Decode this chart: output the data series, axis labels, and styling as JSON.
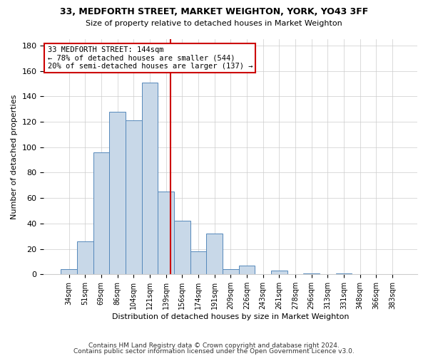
{
  "title1": "33, MEDFORTH STREET, MARKET WEIGHTON, YORK, YO43 3FF",
  "title2": "Size of property relative to detached houses in Market Weighton",
  "xlabel": "Distribution of detached houses by size in Market Weighton",
  "ylabel": "Number of detached properties",
  "bar_color": "#c8d8e8",
  "bar_edge_color": "#5588bb",
  "categories": [
    "34sqm",
    "51sqm",
    "69sqm",
    "86sqm",
    "104sqm",
    "121sqm",
    "139sqm",
    "156sqm",
    "174sqm",
    "191sqm",
    "209sqm",
    "226sqm",
    "243sqm",
    "261sqm",
    "278sqm",
    "296sqm",
    "313sqm",
    "331sqm",
    "348sqm",
    "366sqm",
    "383sqm"
  ],
  "values": [
    4,
    26,
    96,
    128,
    121,
    151,
    65,
    42,
    18,
    32,
    4,
    7,
    0,
    3,
    0,
    1,
    0,
    1,
    0,
    0,
    0
  ],
  "vline_color": "#cc0000",
  "ylim": [
    0,
    185
  ],
  "yticks": [
    0,
    20,
    40,
    60,
    80,
    100,
    120,
    140,
    160,
    180
  ],
  "annotation_text": "33 MEDFORTH STREET: 144sqm\n← 78% of detached houses are smaller (544)\n20% of semi-detached houses are larger (137) →",
  "footnote1": "Contains HM Land Registry data © Crown copyright and database right 2024.",
  "footnote2": "Contains public sector information licensed under the Open Government Licence v3.0.",
  "grid_color": "#cccccc",
  "background_color": "#ffffff"
}
